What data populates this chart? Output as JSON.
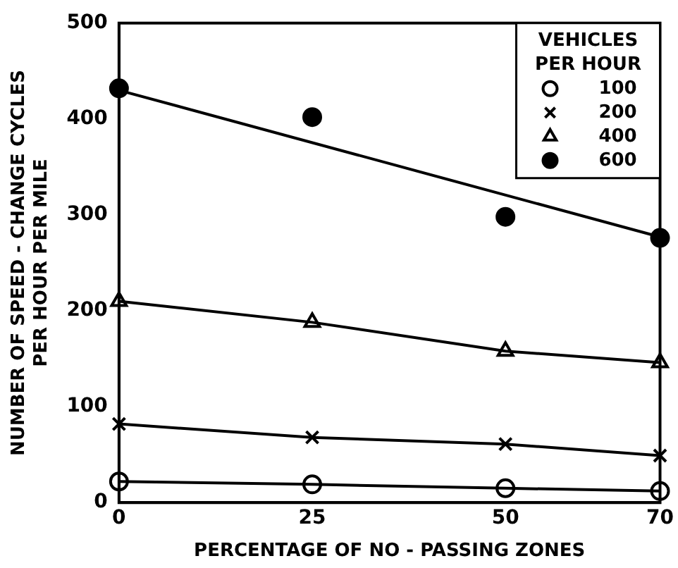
{
  "chart_data": {
    "type": "line",
    "xlabel": "PERCENTAGE OF NO - PASSING ZONES",
    "ylabel": "NUMBER OF SPEED - CHANGE CYCLES PER HOUR PER MILE",
    "legend_title": "VEHICLES PER HOUR",
    "legend": "top right",
    "grid": false,
    "x": [
      0,
      25,
      50,
      70
    ],
    "xlim": [
      0,
      70
    ],
    "xticks": [
      0,
      25,
      50,
      70
    ],
    "ylim": [
      0,
      500
    ],
    "yticks": [
      0,
      100,
      200,
      300,
      400,
      500
    ],
    "series": [
      {
        "name": "100",
        "color": "#000000",
        "marker": "circle",
        "values": [
          22,
          19,
          15,
          12
        ]
      },
      {
        "name": "200",
        "color": "#000000",
        "marker": "cross",
        "values": [
          82,
          68,
          61,
          49
        ]
      },
      {
        "name": "400",
        "color": "#000000",
        "marker": "triangle",
        "values": [
          210,
          188,
          158,
          146
        ]
      },
      {
        "name": "600",
        "type": "scatter",
        "color": "#000000",
        "marker": "circle",
        "values": [
          432,
          402,
          298,
          276
        ]
      },
      {
        "type": "line",
        "color": "#000000",
        "marker": "none",
        "x": [
          0,
          70
        ],
        "values": [
          430,
          277
        ]
      }
    ]
  }
}
